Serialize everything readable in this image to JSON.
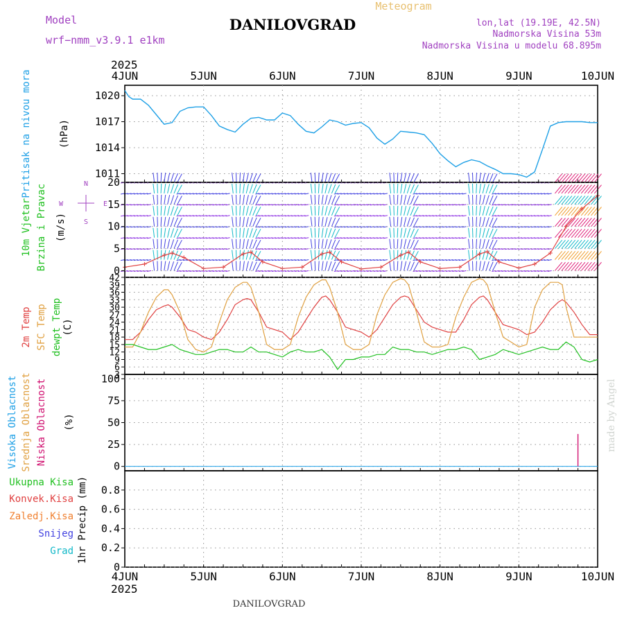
{
  "header": {
    "model_label": "Model",
    "model_name": "wrf−nmm_v3.9.1  e1km",
    "title": "DANILOVGRAD",
    "subtitle": "Meteogram",
    "coords": "lon,lat (19.19E, 42.5N)",
    "elevation": "Nadmorska Visina 53m",
    "model_elevation": "Nadmorska Visina u modelu 68.895m",
    "watermark": "made by Angel",
    "footer_station": "DANILOVGRAD"
  },
  "colors": {
    "pressure": "#1ea0e6",
    "wind_blue": "#4040e0",
    "wind_cyan": "#10b8c8",
    "wind_purple": "#8a2be2",
    "wind_pink": "#e0207a",
    "wind_orange": "#f0a030",
    "wind_speed": "#e04040",
    "temp_2m": "#e04040",
    "temp_sfc": "#e0a040",
    "dewpoint": "#20c020",
    "cloud_high": "#1ea0e6",
    "cloud_mid": "#e0a040",
    "cloud_low": "#d01070",
    "label_green": "#20c020",
    "label_red": "#e04040",
    "label_orange": "#f08030",
    "label_blue": "#4040e0",
    "label_cyan": "#10b8c8",
    "label_purple": "#a040c0"
  },
  "chart_data": [
    {
      "type": "line",
      "panel": "pressure",
      "ylabel_lines": [
        "Pritisak na nivou mora"
      ],
      "unit": "(hPa)",
      "x_ticks": [
        "4JUN",
        "5JUN",
        "6JUN",
        "7JUN",
        "8JUN",
        "9JUN",
        "10JUN"
      ],
      "x_year": "2025",
      "yticks": [
        1011,
        1014,
        1017,
        1020
      ],
      "ylim": [
        1010.0,
        1021.2
      ],
      "series": [
        {
          "key": "mslp",
          "x_days": [
            0.0,
            0.05,
            0.1,
            0.2,
            0.3,
            0.4,
            0.5,
            0.6,
            0.7,
            0.8,
            0.9,
            1.0,
            1.1,
            1.2,
            1.3,
            1.4,
            1.5,
            1.6,
            1.7,
            1.8,
            1.9,
            2.0,
            2.1,
            2.2,
            2.3,
            2.4,
            2.5,
            2.6,
            2.7,
            2.8,
            2.9,
            3.0,
            3.1,
            3.2,
            3.3,
            3.4,
            3.5,
            3.6,
            3.7,
            3.8,
            3.9,
            4.0,
            4.1,
            4.2,
            4.3,
            4.4,
            4.5,
            4.6,
            4.7,
            4.8,
            4.9,
            5.0,
            5.1,
            5.2,
            5.3,
            5.4,
            5.5,
            5.6,
            5.7,
            5.8,
            5.9,
            6.0
          ],
          "values": [
            1020.6,
            1019.9,
            1019.6,
            1019.6,
            1018.9,
            1017.8,
            1016.7,
            1016.9,
            1018.2,
            1018.6,
            1018.7,
            1018.7,
            1017.7,
            1016.5,
            1016.1,
            1015.8,
            1016.7,
            1017.4,
            1017.5,
            1017.2,
            1017.2,
            1018.0,
            1017.7,
            1016.7,
            1015.9,
            1015.7,
            1016.4,
            1017.2,
            1017.0,
            1016.6,
            1016.8,
            1016.9,
            1016.3,
            1015.1,
            1014.4,
            1015.0,
            1015.9,
            1015.8,
            1015.7,
            1015.5,
            1014.5,
            1013.3,
            1012.5,
            1011.8,
            1012.3,
            1012.6,
            1012.4,
            1011.9,
            1011.5,
            1011.0,
            1011.0,
            1010.9,
            1010.6,
            1011.2,
            1013.8,
            1016.5,
            1016.9,
            1017.0,
            1017.0,
            1017.0,
            1016.9,
            1016.9
          ]
        }
      ]
    },
    {
      "type": "wind_barbs",
      "panel": "wind",
      "ylabel_lines": [
        "10m Vjetar",
        "Brzina i Pravac"
      ],
      "unit": "(m/s)",
      "compass": [
        "N",
        "E",
        "S",
        "W",
        "<",
        ">"
      ],
      "yticks": [
        0,
        5,
        10,
        15,
        20
      ],
      "ylim": [
        -1.5,
        20
      ],
      "barb_levels": [
        0,
        2.5,
        5,
        7.5,
        10,
        12.5,
        15,
        17.5,
        20
      ],
      "wind_speed": {
        "x_days": [
          0.0,
          0.25,
          0.5,
          0.6,
          0.75,
          1.0,
          1.25,
          1.5,
          1.6,
          1.75,
          2.0,
          2.25,
          2.5,
          2.6,
          2.75,
          3.0,
          3.25,
          3.5,
          3.6,
          3.75,
          4.0,
          4.25,
          4.5,
          4.6,
          4.75,
          5.0,
          5.2,
          5.4,
          5.6,
          5.8,
          6.0
        ],
        "values": [
          0.8,
          1.5,
          3.5,
          4.0,
          3.0,
          0.5,
          0.8,
          3.8,
          4.2,
          2.0,
          0.5,
          0.8,
          3.8,
          4.2,
          2.0,
          0.4,
          0.8,
          3.5,
          4.2,
          2.0,
          0.5,
          0.8,
          3.8,
          4.3,
          2.0,
          0.6,
          1.5,
          4.0,
          10.0,
          14.0,
          17.0
        ]
      }
    },
    {
      "type": "line",
      "panel": "temperature",
      "ylabel_lines": [
        "2m Temp",
        "SFC Temp",
        "dewpt Temp"
      ],
      "unit": "(C)",
      "yticks": [
        3,
        6,
        9,
        12,
        15,
        18,
        21,
        24,
        27,
        30,
        33,
        36,
        39,
        42
      ],
      "ylim": [
        3,
        42
      ],
      "series": [
        {
          "key": "t2m",
          "x_days": [
            0.0,
            0.1,
            0.2,
            0.3,
            0.4,
            0.5,
            0.55,
            0.6,
            0.7,
            0.8,
            0.9,
            1.0,
            1.1,
            1.2,
            1.3,
            1.4,
            1.5,
            1.55,
            1.6,
            1.7,
            1.8,
            1.9,
            2.0,
            2.1,
            2.2,
            2.3,
            2.4,
            2.5,
            2.55,
            2.6,
            2.7,
            2.8,
            2.9,
            3.0,
            3.1,
            3.2,
            3.3,
            3.4,
            3.5,
            3.55,
            3.6,
            3.7,
            3.8,
            3.9,
            4.0,
            4.1,
            4.2,
            4.3,
            4.4,
            4.5,
            4.55,
            4.6,
            4.7,
            4.8,
            4.9,
            5.0,
            5.1,
            5.2,
            5.3,
            5.4,
            5.5,
            5.55,
            5.6,
            5.7,
            5.8,
            5.9,
            6.0
          ],
          "values": [
            17,
            17,
            20,
            25,
            29,
            30.5,
            31,
            30,
            26,
            21,
            20,
            18,
            17,
            20,
            25,
            31,
            33,
            33.5,
            33,
            28,
            22,
            21,
            20,
            17,
            20,
            25,
            30,
            34,
            34.5,
            33,
            28,
            22,
            21,
            20,
            18,
            21,
            26,
            31,
            34,
            34.5,
            34,
            29,
            24,
            22,
            21,
            20,
            20,
            25,
            31,
            34,
            34.5,
            33,
            28,
            23,
            22,
            21,
            19,
            20,
            24,
            29,
            32,
            33,
            32,
            28,
            23,
            19,
            19
          ]
        },
        {
          "key": "tsfc",
          "x_days": [
            0.0,
            0.1,
            0.2,
            0.3,
            0.4,
            0.5,
            0.55,
            0.6,
            0.7,
            0.8,
            0.9,
            1.0,
            1.1,
            1.2,
            1.3,
            1.4,
            1.5,
            1.55,
            1.6,
            1.7,
            1.8,
            1.9,
            2.0,
            2.1,
            2.2,
            2.3,
            2.4,
            2.5,
            2.55,
            2.6,
            2.7,
            2.8,
            2.9,
            3.0,
            3.1,
            3.2,
            3.3,
            3.4,
            3.5,
            3.55,
            3.6,
            3.7,
            3.8,
            3.9,
            4.0,
            4.1,
            4.2,
            4.3,
            4.4,
            4.5,
            4.55,
            4.6,
            4.7,
            4.8,
            4.9,
            5.0,
            5.1,
            5.2,
            5.3,
            5.4,
            5.5,
            5.55,
            5.6,
            5.7,
            5.8,
            5.9,
            6.0
          ],
          "values": [
            14,
            14,
            20,
            28,
            34,
            37,
            37,
            35,
            28,
            17,
            13,
            12,
            14,
            24,
            33,
            38,
            40,
            40,
            38,
            28,
            15,
            13,
            13,
            15,
            26,
            34,
            39,
            41,
            41,
            38,
            28,
            15,
            13,
            13,
            15,
            27,
            35,
            40,
            41.5,
            41,
            39,
            28,
            16,
            14,
            14,
            15,
            26,
            34,
            40,
            41.5,
            41,
            39,
            28,
            18,
            16,
            14,
            15,
            30,
            37,
            40,
            40,
            39,
            30,
            18,
            18,
            18,
            18
          ]
        },
        {
          "key": "dewpt",
          "x_days": [
            0.0,
            0.1,
            0.2,
            0.3,
            0.4,
            0.5,
            0.6,
            0.7,
            0.8,
            0.9,
            1.0,
            1.1,
            1.2,
            1.3,
            1.4,
            1.5,
            1.6,
            1.7,
            1.8,
            1.9,
            2.0,
            2.1,
            2.2,
            2.3,
            2.4,
            2.5,
            2.6,
            2.7,
            2.8,
            2.9,
            3.0,
            3.1,
            3.2,
            3.3,
            3.4,
            3.5,
            3.6,
            3.7,
            3.8,
            3.9,
            4.0,
            4.1,
            4.2,
            4.3,
            4.4,
            4.5,
            4.6,
            4.7,
            4.8,
            4.9,
            5.0,
            5.1,
            5.2,
            5.3,
            5.4,
            5.5,
            5.6,
            5.7,
            5.8,
            5.9,
            6.0
          ],
          "values": [
            15,
            15,
            14,
            13,
            13,
            14,
            15,
            13,
            12,
            11,
            11,
            12,
            13,
            13,
            12,
            12,
            14,
            12,
            12,
            11,
            10,
            12,
            13,
            12,
            12,
            13,
            10,
            5,
            9,
            9,
            10,
            10,
            11,
            11,
            14,
            13,
            13,
            12,
            12,
            11,
            12,
            13,
            13,
            14,
            13,
            9,
            10,
            11,
            13,
            12,
            11,
            12,
            13,
            14,
            13,
            13,
            16,
            14,
            9,
            8,
            9
          ]
        }
      ]
    },
    {
      "type": "bar",
      "panel": "clouds",
      "ylabel_lines": [
        "Visoka Oblacnost",
        "Srednja Oblacnost",
        "Niska Oblacnost"
      ],
      "unit": "(%)",
      "yticks": [
        0,
        25,
        50,
        75,
        100
      ],
      "ylim": [
        -5,
        105
      ],
      "series": [
        {
          "key": "low",
          "x_days": [
            5.75
          ],
          "values": [
            37
          ]
        },
        {
          "key": "mid",
          "x_days": [],
          "values": []
        },
        {
          "key": "high",
          "x_days": [],
          "values": []
        }
      ]
    },
    {
      "type": "bar",
      "panel": "precip",
      "ylabel_lines": [
        "Ukupna Kisa",
        "Konvek.Kisa",
        "Zaledj.Kisa",
        "Snijeg",
        "Grad"
      ],
      "unit": "1hr Precip (mm)",
      "yticks": [
        0,
        0.2,
        0.4,
        0.6,
        0.8
      ],
      "ytick_labels": [
        "0",
        "0.2",
        "0.4",
        "0.6",
        "0.8"
      ],
      "ylim": [
        0,
        1.0
      ],
      "series": [
        {
          "key": "total",
          "x_days": [],
          "values": []
        }
      ]
    }
  ]
}
